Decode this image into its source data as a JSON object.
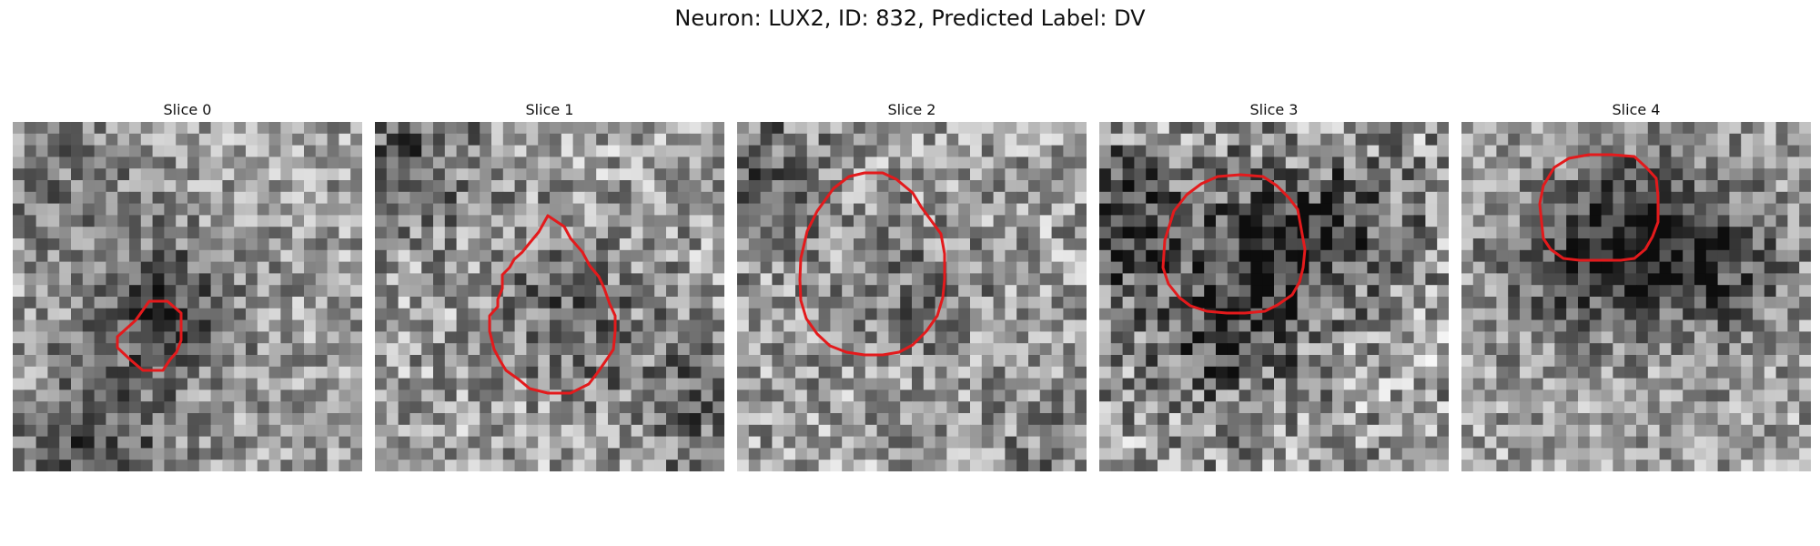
{
  "figure": {
    "title": "Neuron: LUX2, ID: 832, Predicted Label: DV"
  },
  "panels": [
    {
      "title": "Slice 0",
      "seed": 11,
      "contrast": 0.55,
      "dark": [
        [
          6,
          28,
          0.35
        ],
        [
          12,
          16,
          0.35
        ],
        [
          4,
          4,
          0.15
        ]
      ]
    },
    {
      "title": "Slice 1",
      "seed": 23,
      "contrast": 0.62,
      "dark": [
        [
          3,
          2,
          0.25
        ],
        [
          16,
          16,
          0.25
        ],
        [
          27,
          24,
          0.2
        ]
      ]
    },
    {
      "title": "Slice 2",
      "seed": 37,
      "contrast": 0.6,
      "dark": [
        [
          1,
          4,
          0.25
        ],
        [
          15,
          14,
          0.15
        ],
        [
          28,
          28,
          0.15
        ]
      ]
    },
    {
      "title": "Slice 3",
      "seed": 41,
      "contrast": 0.7,
      "dark": [
        [
          1,
          8,
          0.45
        ],
        [
          15,
          10,
          0.4
        ],
        [
          10,
          18,
          0.35
        ],
        [
          22,
          8,
          0.2
        ]
      ]
    },
    {
      "title": "Slice 4",
      "seed": 53,
      "contrast": 0.55,
      "dark": [
        [
          15,
          9,
          0.45
        ],
        [
          8,
          12,
          0.25
        ],
        [
          22,
          12,
          0.25
        ]
      ]
    }
  ],
  "colors": {
    "contour": "#e31a1c"
  }
}
